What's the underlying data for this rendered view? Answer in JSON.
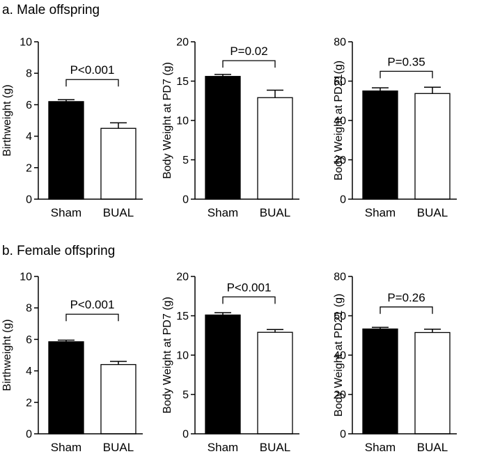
{
  "sections": [
    {
      "label": "a.  Male offspring"
    },
    {
      "label": "b.  Female offspring"
    }
  ],
  "chart_data": [
    {
      "type": "bar",
      "section": 0,
      "column": 0,
      "ylabel": "Birthweight (g)",
      "ylim": [
        0,
        10
      ],
      "yticks": [
        0,
        2,
        4,
        6,
        8,
        10
      ],
      "categories": [
        "Sham",
        "BUAL"
      ],
      "values": [
        6.2,
        4.5
      ],
      "errors": [
        0.12,
        0.35
      ],
      "fill": [
        "#000000",
        "#ffffff"
      ],
      "annotation": "P<0.001",
      "bracket_y": 7.6
    },
    {
      "type": "bar",
      "section": 0,
      "column": 1,
      "ylabel": "Body Weight at PD7 (g)",
      "ylim": [
        0,
        20
      ],
      "yticks": [
        0,
        5,
        10,
        15,
        20
      ],
      "categories": [
        "Sham",
        "BUAL"
      ],
      "values": [
        15.6,
        12.9
      ],
      "errors": [
        0.25,
        0.95
      ],
      "fill": [
        "#000000",
        "#ffffff"
      ],
      "annotation": "P=0.02",
      "bracket_y": 17.6
    },
    {
      "type": "bar",
      "section": 0,
      "column": 2,
      "ylabel": "Body Weight at PD21(g)",
      "ylim": [
        0,
        80
      ],
      "yticks": [
        0,
        20,
        40,
        60,
        80
      ],
      "categories": [
        "Sham",
        "BUAL"
      ],
      "values": [
        55,
        53.7
      ],
      "errors": [
        1.6,
        3.2
      ],
      "fill": [
        "#000000",
        "#ffffff"
      ],
      "annotation": "P=0.35",
      "bracket_y": 65
    },
    {
      "type": "bar",
      "section": 1,
      "column": 0,
      "ylabel": "Birthweight (g)",
      "ylim": [
        0,
        10
      ],
      "yticks": [
        0,
        2,
        4,
        6,
        8,
        10
      ],
      "categories": [
        "Sham",
        "BUAL"
      ],
      "values": [
        5.85,
        4.4
      ],
      "errors": [
        0.1,
        0.2
      ],
      "fill": [
        "#000000",
        "#ffffff"
      ],
      "annotation": "P<0.001",
      "bracket_y": 7.6
    },
    {
      "type": "bar",
      "section": 1,
      "column": 1,
      "ylabel": "Body Weight at PD7 (g)",
      "ylim": [
        0,
        20
      ],
      "yticks": [
        0,
        5,
        10,
        15,
        20
      ],
      "categories": [
        "Sham",
        "BUAL"
      ],
      "values": [
        15.1,
        12.9
      ],
      "errors": [
        0.3,
        0.35
      ],
      "fill": [
        "#000000",
        "#ffffff"
      ],
      "annotation": "P<0.001",
      "bracket_y": 17.4
    },
    {
      "type": "bar",
      "section": 1,
      "column": 2,
      "ylabel": "Body Weight at PD21 (g)",
      "ylim": [
        0,
        80
      ],
      "yticks": [
        0,
        20,
        40,
        60,
        80
      ],
      "categories": [
        "Sham",
        "BUAL"
      ],
      "values": [
        53.3,
        51.5
      ],
      "errors": [
        0.8,
        1.7
      ],
      "fill": [
        "#000000",
        "#ffffff"
      ],
      "annotation": "P=0.26",
      "bracket_y": 64.5
    }
  ]
}
